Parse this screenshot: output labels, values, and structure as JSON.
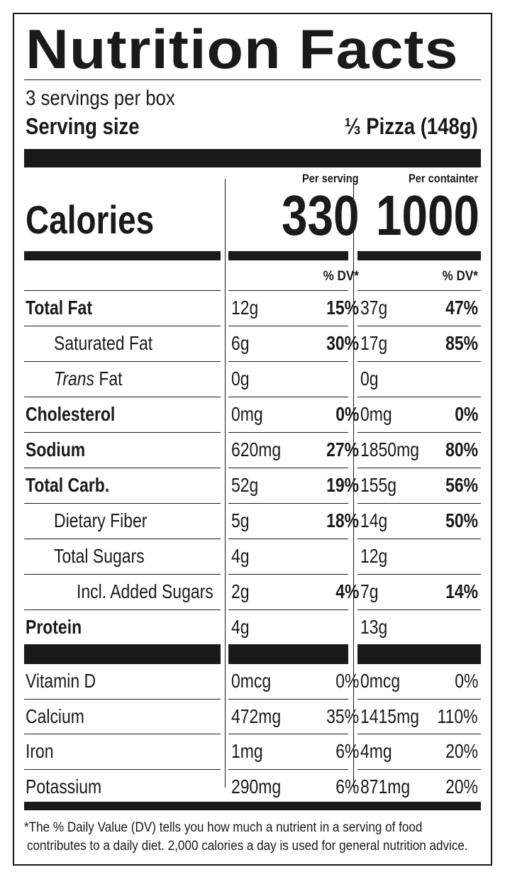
{
  "title": "Nutrition Facts",
  "servings_per_container": "3 servings per box",
  "serving_size_label": "Serving size",
  "serving_size_value": "⅓ Pizza (148g)",
  "col_headers": {
    "per_serving": "Per serving",
    "per_container": "Per containter"
  },
  "calories": {
    "label": "Calories",
    "per_serving": "330",
    "per_container": "1000"
  },
  "dv_header": "% DV*",
  "nutrients": [
    {
      "name": "Total Fat",
      "bold": true,
      "indent": 0,
      "s_amt": "12g",
      "s_dv": "15%",
      "c_amt": "37g",
      "c_dv": "47%"
    },
    {
      "name": "Saturated Fat",
      "bold": false,
      "indent": 1,
      "s_amt": "6g",
      "s_dv": "30%",
      "c_amt": "17g",
      "c_dv": "85%"
    },
    {
      "name_italic": "Trans",
      "name": " Fat",
      "bold": false,
      "indent": 1,
      "s_amt": "0g",
      "s_dv": "",
      "c_amt": "0g",
      "c_dv": ""
    },
    {
      "name": "Cholesterol",
      "bold": true,
      "indent": 0,
      "s_amt": "0mg",
      "s_dv": "0%",
      "c_amt": "0mg",
      "c_dv": "0%"
    },
    {
      "name": "Sodium",
      "bold": true,
      "indent": 0,
      "s_amt": "620mg",
      "s_dv": "27%",
      "c_amt": "1850mg",
      "c_dv": "80%"
    },
    {
      "name": "Total Carb.",
      "bold": true,
      "indent": 0,
      "s_amt": "52g",
      "s_dv": "19%",
      "c_amt": "155g",
      "c_dv": "56%"
    },
    {
      "name": "Dietary Fiber",
      "bold": false,
      "indent": 1,
      "s_amt": "5g",
      "s_dv": "18%",
      "c_amt": "14g",
      "c_dv": "50%"
    },
    {
      "name": "Total Sugars",
      "bold": false,
      "indent": 1,
      "s_amt": "4g",
      "s_dv": "",
      "c_amt": "12g",
      "c_dv": ""
    },
    {
      "name": "Incl. Added Sugars",
      "bold": false,
      "indent": 2,
      "s_amt": "2g",
      "s_dv": "4%",
      "c_amt": "7g",
      "c_dv": "14%"
    },
    {
      "name": "Protein",
      "bold": true,
      "indent": 0,
      "s_amt": "4g",
      "s_dv": "",
      "c_amt": "13g",
      "c_dv": ""
    }
  ],
  "vitamins": [
    {
      "name": "Vitamin D",
      "s_amt": "0mcg",
      "s_dv": "0%",
      "c_amt": "0mcg",
      "c_dv": "0%"
    },
    {
      "name": "Calcium",
      "s_amt": "472mg",
      "s_dv": "35%",
      "c_amt": "1415mg",
      "c_dv": "110%"
    },
    {
      "name": "Iron",
      "s_amt": "1mg",
      "s_dv": "6%",
      "c_amt": "4mg",
      "c_dv": "20%"
    },
    {
      "name": "Potassium",
      "s_amt": "290mg",
      "s_dv": "6%",
      "c_amt": "871mg",
      "c_dv": "20%"
    }
  ],
  "footnote": {
    "line1": "*The % Daily Value (DV) tells you how much a nutrient in a serving of food",
    "line2": "contributes to a daily diet. 2,000 calories a day is used for general nutrition advice."
  }
}
